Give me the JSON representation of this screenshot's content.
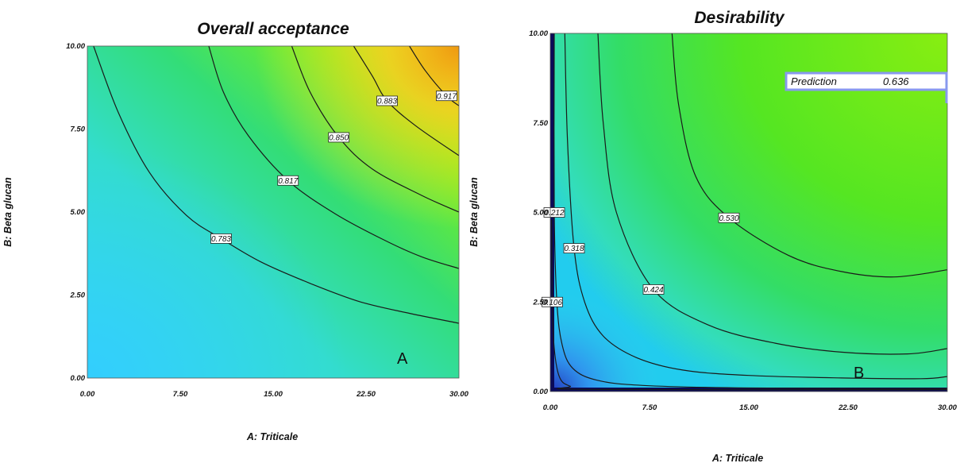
{
  "chart_data": [
    {
      "type": "contour",
      "title": "Overall acceptance",
      "xlabel": "A: Triticale",
      "ylabel": "B: Beta glucan",
      "xlim": [
        0,
        30
      ],
      "ylim": [
        0,
        10
      ],
      "x_ticks": [
        "0.00",
        "7.50",
        "15.00",
        "22.50",
        "30.00"
      ],
      "y_ticks": [
        "0.00",
        "2.50",
        "5.00",
        "7.50",
        "10.00"
      ],
      "contours": [
        {
          "label": "0.783",
          "points": [
            [
              0.5,
              10
            ],
            [
              2.5,
              8
            ],
            [
              5,
              6.2
            ],
            [
              8,
              4.9
            ],
            [
              10.8,
              4.2
            ],
            [
              14,
              3.5
            ],
            [
              18,
              2.85
            ],
            [
              22,
              2.3
            ],
            [
              26,
              1.95
            ],
            [
              30,
              1.65
            ]
          ]
        },
        {
          "label": "0.817",
          "points": [
            [
              9.8,
              10
            ],
            [
              11,
              8.6
            ],
            [
              13,
              7.3
            ],
            [
              16.2,
              5.95
            ],
            [
              20,
              4.95
            ],
            [
              24,
              4.15
            ],
            [
              27,
              3.65
            ],
            [
              30,
              3.3
            ]
          ]
        },
        {
          "label": "0.850",
          "points": [
            [
              16.5,
              10
            ],
            [
              18,
              8.6
            ],
            [
              20.3,
              7.25
            ],
            [
              23,
              6.3
            ],
            [
              27,
              5.5
            ],
            [
              30,
              5.0
            ]
          ]
        },
        {
          "label": "0.883",
          "points": [
            [
              21.5,
              10
            ],
            [
              23,
              9.1
            ],
            [
              24.2,
              8.35
            ],
            [
              26.5,
              7.6
            ],
            [
              30,
              6.7
            ]
          ]
        },
        {
          "label": "0.917",
          "points": [
            [
              26,
              10
            ],
            [
              27.3,
              9.25
            ],
            [
              29,
              8.5
            ],
            [
              30,
              8.2
            ]
          ]
        }
      ],
      "annotation": "A"
    },
    {
      "type": "contour",
      "title": "Desirability",
      "xlabel": "A: Triticale",
      "ylabel": "B: Beta glucan",
      "xlim": [
        0,
        30
      ],
      "ylim": [
        0,
        10
      ],
      "x_ticks": [
        "0.00",
        "7.50",
        "15.00",
        "22.50",
        "30.00"
      ],
      "y_ticks": [
        "0.00",
        "2.50",
        "5.00",
        "7.50",
        "10.00"
      ],
      "contours": [
        {
          "label": "0.106",
          "points": [
            [
              0.1,
              4.8
            ],
            [
              0.15,
              2.5
            ],
            [
              0.3,
              1.2
            ],
            [
              0.7,
              0.4
            ],
            [
              1.5,
              0.15
            ],
            [
              3,
              0.06
            ],
            [
              30,
              0.05
            ]
          ]
        },
        {
          "label": "0.212",
          "points": [
            [
              0.3,
              10
            ],
            [
              0.3,
              5
            ],
            [
              0.5,
              2.5
            ],
            [
              0.9,
              1.3
            ],
            [
              1.7,
              0.65
            ],
            [
              3.5,
              0.32
            ],
            [
              7,
              0.17
            ],
            [
              15,
              0.1
            ],
            [
              30,
              0.08
            ]
          ]
        },
        {
          "label": "0.318",
          "points": [
            [
              1.1,
              10
            ],
            [
              1.3,
              7
            ],
            [
              1.8,
              4
            ],
            [
              2.6,
              2.5
            ],
            [
              4,
              1.55
            ],
            [
              6.5,
              0.95
            ],
            [
              10,
              0.6
            ],
            [
              15,
              0.45
            ],
            [
              22,
              0.38
            ],
            [
              28,
              0.36
            ],
            [
              30,
              0.42
            ]
          ]
        },
        {
          "label": "0.424",
          "points": [
            [
              3.6,
              10
            ],
            [
              4,
              7.5
            ],
            [
              5,
              5
            ],
            [
              7.8,
              2.85
            ],
            [
              12,
              1.85
            ],
            [
              17,
              1.35
            ],
            [
              22,
              1.1
            ],
            [
              27,
              1.05
            ],
            [
              30,
              1.2
            ]
          ]
        },
        {
          "label": "0.530",
          "points": [
            [
              9.2,
              10
            ],
            [
              9.7,
              8
            ],
            [
              11,
              6
            ],
            [
              13.5,
              4.85
            ],
            [
              18,
              3.8
            ],
            [
              22,
              3.35
            ],
            [
              26,
              3.2
            ],
            [
              30,
              3.4
            ]
          ]
        }
      ],
      "prediction": {
        "label": "Prediction",
        "value": "0.636"
      },
      "annotation": "B"
    }
  ]
}
